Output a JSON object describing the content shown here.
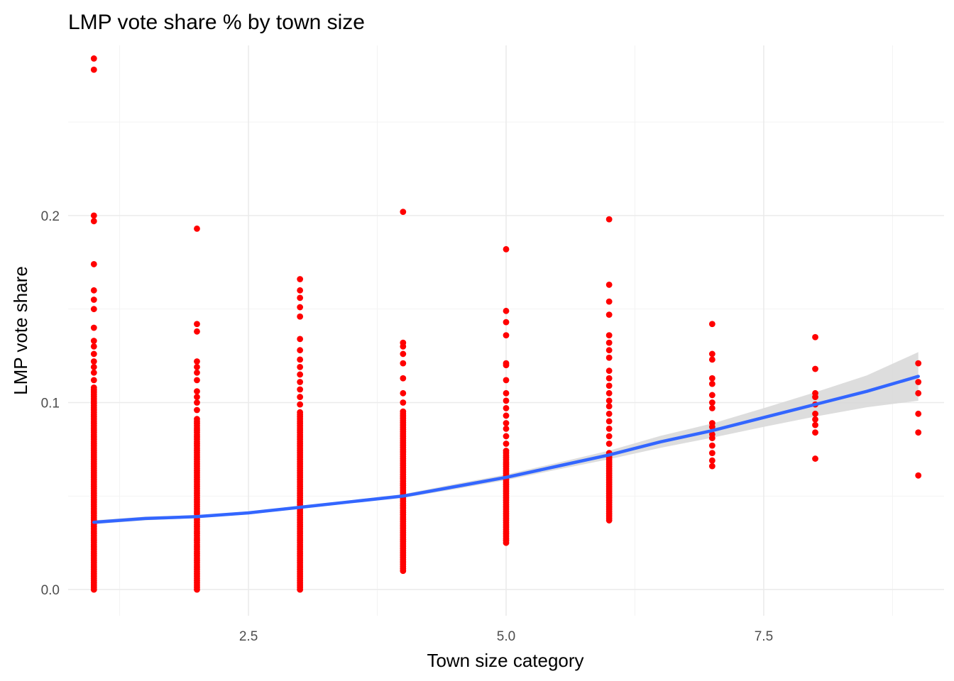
{
  "chart_data": {
    "type": "scatter",
    "title": "LMP vote share % by town size",
    "xlabel": "Town size category",
    "ylabel": "LMP vote share",
    "xlim": [
      0.75,
      9.25
    ],
    "ylim": [
      -0.014,
      0.291
    ],
    "x_ticks": [
      2.5,
      5.0,
      7.5
    ],
    "x_tick_labels": [
      "2.5",
      "5.0",
      "7.5"
    ],
    "y_ticks": [
      0.0,
      0.1,
      0.2
    ],
    "y_tick_labels": [
      "0.0",
      "0.1",
      "0.2"
    ],
    "grid": true,
    "legend": "none",
    "colors": {
      "points": "#ff0000",
      "smooth_line": "#3366ff",
      "confidence_band": "#d9d9d9"
    },
    "series": [
      {
        "type": "scatter",
        "columns": [
          {
            "x": 1,
            "dense_from": 0.0,
            "dense_to": 0.108,
            "outliers": [
              0.112,
              0.116,
              0.119,
              0.122,
              0.126,
              0.13,
              0.133,
              0.14,
              0.15,
              0.155,
              0.16,
              0.174,
              0.197,
              0.2,
              0.278,
              0.284
            ]
          },
          {
            "x": 2,
            "dense_from": 0.0,
            "dense_to": 0.092,
            "outliers": [
              0.096,
              0.1,
              0.103,
              0.106,
              0.112,
              0.116,
              0.119,
              0.122,
              0.138,
              0.142,
              0.193
            ]
          },
          {
            "x": 3,
            "dense_from": 0.0,
            "dense_to": 0.095,
            "outliers": [
              0.099,
              0.103,
              0.107,
              0.111,
              0.115,
              0.119,
              0.123,
              0.128,
              0.134,
              0.146,
              0.151,
              0.156,
              0.16,
              0.166
            ]
          },
          {
            "x": 4,
            "dense_from": 0.01,
            "dense_to": 0.096,
            "outliers": [
              0.1,
              0.105,
              0.113,
              0.121,
              0.126,
              0.13,
              0.132,
              0.202
            ]
          },
          {
            "x": 5,
            "dense_from": 0.025,
            "dense_to": 0.075,
            "outliers": [
              0.078,
              0.082,
              0.086,
              0.089,
              0.093,
              0.097,
              0.101,
              0.105,
              0.112,
              0.12,
              0.121,
              0.136,
              0.143,
              0.149,
              0.182
            ]
          },
          {
            "x": 6,
            "dense_from": 0.037,
            "dense_to": 0.074,
            "outliers": [
              0.078,
              0.082,
              0.086,
              0.09,
              0.094,
              0.098,
              0.101,
              0.105,
              0.109,
              0.113,
              0.117,
              0.124,
              0.128,
              0.132,
              0.136,
              0.147,
              0.154,
              0.163,
              0.198
            ]
          },
          {
            "x": 7,
            "dense_from": 0.066,
            "dense_to": 0.066,
            "outliers": [
              0.069,
              0.073,
              0.077,
              0.081,
              0.083,
              0.087,
              0.089,
              0.097,
              0.1,
              0.104,
              0.11,
              0.113,
              0.123,
              0.126,
              0.142
            ]
          },
          {
            "x": 8,
            "dense_from": 0.07,
            "dense_to": 0.07,
            "outliers": [
              0.084,
              0.088,
              0.091,
              0.094,
              0.099,
              0.103,
              0.105,
              0.118,
              0.135
            ]
          },
          {
            "x": 9,
            "dense_from": 0.061,
            "dense_to": 0.061,
            "outliers": [
              0.084,
              0.094,
              0.105,
              0.111,
              0.121
            ]
          }
        ]
      },
      {
        "type": "line",
        "x": [
          1,
          1.5,
          2,
          2.5,
          3,
          3.5,
          4,
          4.5,
          5,
          5.5,
          6,
          6.5,
          7,
          7.5,
          8,
          8.5,
          9
        ],
        "y": [
          0.036,
          0.038,
          0.039,
          0.041,
          0.044,
          0.047,
          0.05,
          0.055,
          0.06,
          0.066,
          0.072,
          0.079,
          0.085,
          0.092,
          0.099,
          0.106,
          0.114
        ],
        "lower": [
          0.035,
          0.037,
          0.0383,
          0.0402,
          0.0432,
          0.0462,
          0.049,
          0.0536,
          0.0585,
          0.0642,
          0.0697,
          0.0758,
          0.0812,
          0.087,
          0.0925,
          0.0975,
          0.101
        ],
        "upper": [
          0.037,
          0.039,
          0.0397,
          0.0418,
          0.0448,
          0.0478,
          0.051,
          0.0564,
          0.0615,
          0.0678,
          0.0743,
          0.0822,
          0.0888,
          0.097,
          0.1055,
          0.1145,
          0.127
        ]
      }
    ]
  }
}
